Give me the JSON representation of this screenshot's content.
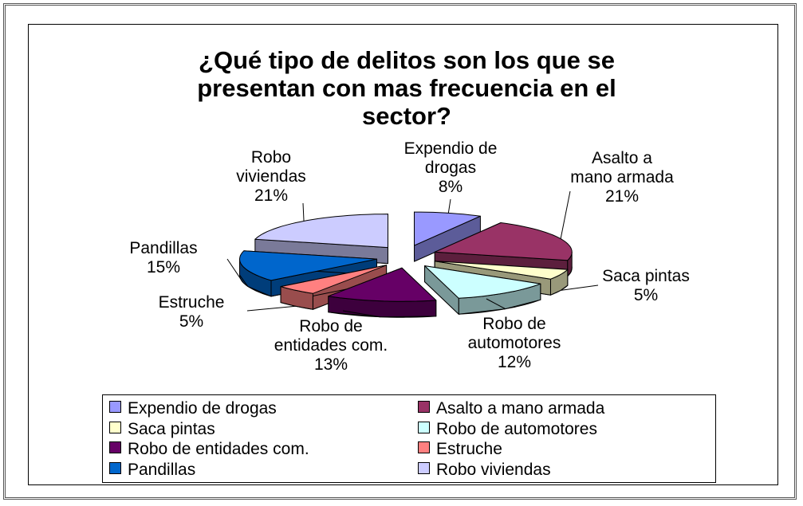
{
  "chart_data": {
    "type": "pie3d",
    "title": "¿Qué tipo de delitos son los que se presentan con mas frecuencia en el sector?",
    "categories": [
      "Expendio de drogas",
      "Asalto a mano armada",
      "Saca pintas",
      "Robo de automotores",
      "Robo de entidades com.",
      "Estruche",
      "Pandillas",
      "Robo viviendas"
    ],
    "values": [
      8,
      21,
      5,
      12,
      13,
      5,
      15,
      21
    ],
    "value_labels": [
      "8%",
      "21%",
      "5%",
      "12%",
      "13%",
      "5%",
      "15%",
      "21%"
    ],
    "colors": [
      "#9999ff",
      "#993366",
      "#ffffcc",
      "#ccffff",
      "#660066",
      "#ff8080",
      "#0066cc",
      "#ccccff"
    ],
    "legend": "bottom"
  }
}
